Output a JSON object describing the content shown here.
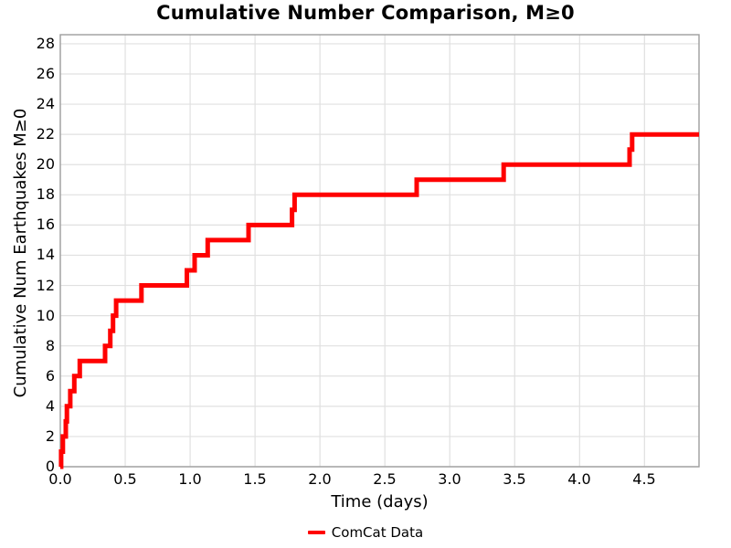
{
  "figure": {
    "title": "Cumulative Number Comparison, M≥0",
    "xlabel": "Time (days)",
    "ylabel": "Cumulative Num Earthquakes M≥0",
    "legend_label": "ComCat Data"
  },
  "colors": {
    "line": "#ff0000",
    "grid": "#e0e0e0",
    "spine": "#9e9e9e",
    "text": "#000000",
    "background": "#ffffff"
  },
  "chart_data": {
    "type": "line",
    "drawstyle": "steps-post",
    "title": "Cumulative Number Comparison, M≥0",
    "xlabel": "Time (days)",
    "ylabel": "Cumulative Num Earthquakes M≥0",
    "xlim": [
      0,
      4.92
    ],
    "ylim": [
      0,
      28.6
    ],
    "xticks": [
      0.0,
      0.5,
      1.0,
      1.5,
      2.0,
      2.5,
      3.0,
      3.5,
      4.0,
      4.5
    ],
    "yticks": [
      0,
      2,
      4,
      6,
      8,
      10,
      12,
      14,
      16,
      18,
      20,
      22,
      24,
      26,
      28
    ],
    "grid": true,
    "legend_position": "bottom-center",
    "series": [
      {
        "name": "ComCat Data",
        "color": "#ff0000",
        "line_width": 5,
        "start": [
          0,
          0
        ],
        "points": [
          [
            0.006,
            1
          ],
          [
            0.02,
            2
          ],
          [
            0.042,
            3
          ],
          [
            0.051,
            4
          ],
          [
            0.077,
            5
          ],
          [
            0.108,
            6
          ],
          [
            0.15,
            7
          ],
          [
            0.345,
            8
          ],
          [
            0.385,
            9
          ],
          [
            0.406,
            10
          ],
          [
            0.43,
            11
          ],
          [
            0.625,
            12
          ],
          [
            0.975,
            13
          ],
          [
            1.035,
            14
          ],
          [
            1.135,
            15
          ],
          [
            1.45,
            16
          ],
          [
            1.785,
            17
          ],
          [
            1.805,
            18
          ],
          [
            2.745,
            19
          ],
          [
            3.415,
            20
          ],
          [
            4.385,
            21
          ],
          [
            4.405,
            22
          ]
        ],
        "end_x": 4.92
      }
    ]
  }
}
